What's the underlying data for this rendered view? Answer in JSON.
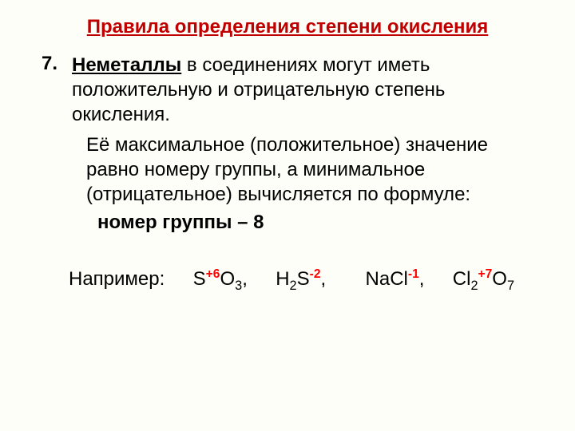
{
  "colors": {
    "background": "#fefef8",
    "title_red": "#c00000",
    "oxidation_red": "#ff0000",
    "text": "#000000"
  },
  "typography": {
    "title_fontsize": 24,
    "body_fontsize": 24,
    "font_family": "Arial"
  },
  "title": "Правила определения степени окисления",
  "rule_number": "7.",
  "rule_leading_word": "Неметаллы",
  "rule_text_rest": " в соединениях могут иметь положительную и отрицательную степень окисления.",
  "continuation_text": "Её максимальное (положительное) значение равно номеру группы, а минимальное (отрицательное) вычисляется по формуле:",
  "formula": "номер группы – 8",
  "example_label": "Например:",
  "examples": [
    {
      "pre": "S",
      "ox": "+6",
      "post_base": "O",
      "post_sub": "3",
      "trail": ","
    },
    {
      "pre": "H",
      "pre_sub": "2",
      "mid": "S",
      "ox": "-2",
      "trail": ","
    },
    {
      "pre": "NaCl",
      "ox": "-1",
      "trail": ","
    },
    {
      "pre": "Cl",
      "pre_sub": "2",
      "ox": "+7",
      "post_base": "O",
      "post_sub": "7",
      "trail": ""
    }
  ]
}
